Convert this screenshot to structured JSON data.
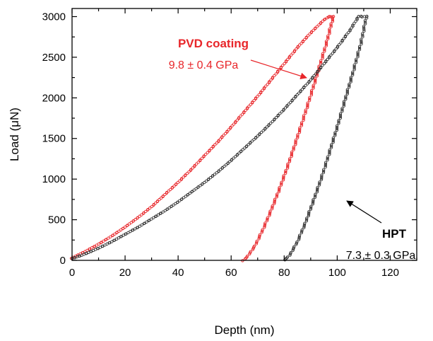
{
  "chart_data": {
    "type": "scatter",
    "xlabel": "Depth (nm)",
    "ylabel": "Load (μN)",
    "xlim": [
      0,
      130
    ],
    "ylim": [
      0,
      3100
    ],
    "x_ticks": [
      0,
      20,
      40,
      60,
      80,
      100,
      120
    ],
    "y_ticks": [
      0,
      500,
      1000,
      1500,
      2000,
      2500,
      3000
    ],
    "grid": false,
    "legend": "none",
    "series": [
      {
        "name": "PVD coating",
        "color": "#e8262a",
        "loading": {
          "x": [
            0,
            5,
            10,
            15,
            20,
            25,
            30,
            35,
            40,
            45,
            50,
            55,
            60,
            65,
            70,
            75,
            80,
            85,
            90,
            95,
            97
          ],
          "y": [
            30,
            110,
            200,
            300,
            410,
            530,
            660,
            810,
            960,
            1120,
            1290,
            1460,
            1640,
            1830,
            2020,
            2220,
            2420,
            2620,
            2800,
            2960,
            3000
          ]
        },
        "hold": {
          "x": [
            97,
            98.5
          ],
          "y": [
            3000,
            3000
          ]
        },
        "unloading": {
          "x": [
            98.5,
            96,
            93,
            90,
            87,
            84,
            81,
            78,
            75,
            72,
            69,
            66,
            64.5
          ],
          "y": [
            3000,
            2680,
            2350,
            2030,
            1720,
            1420,
            1130,
            860,
            610,
            380,
            180,
            40,
            0
          ]
        }
      },
      {
        "name": "HPT",
        "color": "#333333",
        "loading": {
          "x": [
            0,
            5,
            10,
            15,
            20,
            25,
            30,
            35,
            40,
            45,
            50,
            55,
            60,
            65,
            70,
            75,
            80,
            85,
            90,
            95,
            100,
            105,
            108
          ],
          "y": [
            20,
            80,
            150,
            230,
            320,
            410,
            510,
            610,
            720,
            840,
            960,
            1090,
            1230,
            1380,
            1530,
            1690,
            1860,
            2040,
            2220,
            2420,
            2620,
            2840,
            3000
          ]
        },
        "hold": {
          "x": [
            108,
            111
          ],
          "y": [
            3000,
            3000
          ]
        },
        "unloading": {
          "x": [
            111,
            109,
            106,
            103,
            100,
            97,
            94,
            91,
            88,
            85,
            82,
            80
          ],
          "y": [
            3000,
            2680,
            2320,
            1980,
            1640,
            1320,
            1010,
            730,
            460,
            230,
            60,
            0
          ]
        }
      }
    ],
    "annotations": [
      {
        "title": "PVD coating",
        "value": "9.8 ± 0.4 GPa",
        "color": "#e8262a",
        "points_to": [
          93,
          2440
        ]
      },
      {
        "title": "HPT",
        "value": "7.3 ± 0.3 GPa",
        "color": "#000000",
        "points_to": [
          102,
          1080
        ]
      }
    ]
  }
}
